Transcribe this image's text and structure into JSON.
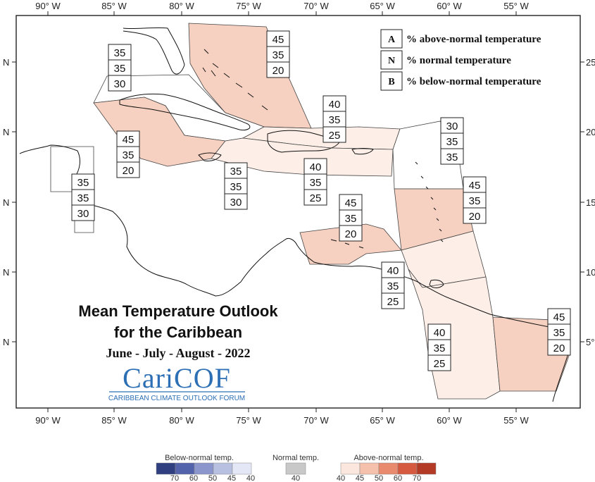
{
  "title": {
    "line1": "Mean Temperature Outlook",
    "line2": "for the Caribbean",
    "period": "June - July - August - 2022"
  },
  "logo": {
    "name": "CariCOF",
    "tagline": "CARIBBEAN CLIMATE OUTLOOK FORUM"
  },
  "axes": {
    "lon_labels": [
      "90° W",
      "85° W",
      "80° W",
      "75° W",
      "70° W",
      "65° W",
      "60° W",
      "55° W"
    ],
    "lat_left_label": "N",
    "lat_right_labels": [
      "25",
      "20",
      "15",
      "10",
      "5°"
    ]
  },
  "key": [
    {
      "letter": "A",
      "text": "% above-normal temperature"
    },
    {
      "letter": "N",
      "text": "% normal temperature"
    },
    {
      "letter": "B",
      "text": "% below-normal temperature"
    }
  ],
  "regions": [
    {
      "id": "bahamas",
      "above": 45,
      "normal": 35,
      "below": 20,
      "category": "above-45"
    },
    {
      "id": "nw-caribbean",
      "above": 35,
      "normal": 35,
      "below": 30,
      "category": "none"
    },
    {
      "id": "cuba-cayman",
      "above": 45,
      "normal": 35,
      "below": 20,
      "category": "above-45"
    },
    {
      "id": "hispaniola-north",
      "above": 40,
      "normal": 35,
      "below": 25,
      "category": "above-40"
    },
    {
      "id": "northern-leewards",
      "above": 30,
      "normal": 35,
      "below": 35,
      "category": "none"
    },
    {
      "id": "belize",
      "above": 35,
      "normal": 35,
      "below": 30,
      "category": "none"
    },
    {
      "id": "jamaica",
      "above": 35,
      "normal": 35,
      "below": 30,
      "category": "none"
    },
    {
      "id": "hispaniola-puerto-rico",
      "above": 40,
      "normal": 35,
      "below": 25,
      "category": "above-40"
    },
    {
      "id": "windwards",
      "above": 45,
      "normal": 35,
      "below": 20,
      "category": "above-45"
    },
    {
      "id": "abc-islands",
      "above": 45,
      "normal": 35,
      "below": 20,
      "category": "above-45"
    },
    {
      "id": "trinidad-tobago",
      "above": 40,
      "normal": 35,
      "below": 25,
      "category": "above-40"
    },
    {
      "id": "guyana",
      "above": 40,
      "normal": 35,
      "below": 25,
      "category": "above-40"
    },
    {
      "id": "suriname-french-guiana",
      "above": 45,
      "normal": 35,
      "below": 20,
      "category": "above-45"
    }
  ],
  "color_scale": {
    "below": {
      "label": "Below-normal temp.",
      "ticks": [
        "70",
        "60",
        "50",
        "45",
        "40"
      ],
      "colors": [
        "#2f3f7f",
        "#5262ab",
        "#8a96cc",
        "#b8c0e2",
        "#e4e8f6"
      ]
    },
    "normal": {
      "label": "Normal temp.",
      "ticks": [
        "40"
      ],
      "color": "#c8c8c8"
    },
    "above": {
      "label": "Above-normal temp.",
      "ticks": [
        "40",
        "45",
        "50",
        "60",
        "70"
      ],
      "colors": [
        "#fbe7de",
        "#f5c1ac",
        "#e98a6e",
        "#d55a3f",
        "#b33a25"
      ]
    }
  }
}
